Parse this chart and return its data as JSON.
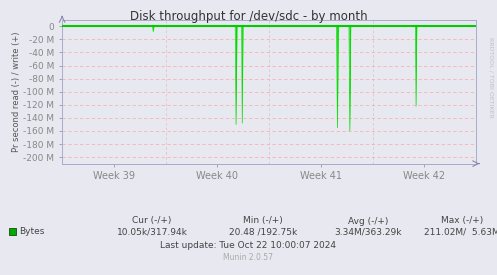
{
  "title": "Disk throughput for /dev/sdc - by month",
  "ylabel": "Pr second read (-) / write (+)",
  "background_color": "#e8e8f0",
  "plot_bg_color": "#e8e8f0",
  "grid_color_h": "#ffaaaa",
  "grid_color_v": "#ddaaaa",
  "line_color": "#00dd00",
  "fill_color": "#00dd00",
  "ylim": [
    -210,
    10
  ],
  "yticks": [
    0,
    -20,
    -40,
    -60,
    -80,
    -100,
    -120,
    -140,
    -160,
    -180,
    -200
  ],
  "ytick_labels": [
    "0",
    "-20 M",
    "-40 M",
    "-60 M",
    "-80 M",
    "-100 M",
    "-120 M",
    "-140 M",
    "-160 M",
    "-180 M",
    "-200 M"
  ],
  "xtick_labels": [
    "Week 39",
    "Week 40",
    "Week 41",
    "Week 42"
  ],
  "watermark": "RRDTOOL / TOBI OETIKER",
  "munin_text": "Munin 2.0.57",
  "legend_label": "Bytes",
  "legend_color": "#00aa00",
  "cur_text": "Cur (-/+)",
  "cur_val": "10.05k/317.94k",
  "min_text": "Min (-/+)",
  "min_val": "20.48 /192.75k",
  "avg_text": "Avg (-/+)",
  "avg_val": "3.34M/363.29k",
  "max_text": "Max (-/+)",
  "max_val": "211.02M/  5.63M",
  "last_update": "Last update: Tue Oct 22 10:00:07 2024",
  "spike_centers": [
    0.22,
    0.42,
    0.435,
    0.665,
    0.695,
    0.855
  ],
  "spike_depths": [
    -8,
    -150,
    -148,
    -155,
    -160,
    -122
  ],
  "spike_widths": [
    0.003,
    0.004,
    0.003,
    0.004,
    0.004,
    0.003
  ]
}
